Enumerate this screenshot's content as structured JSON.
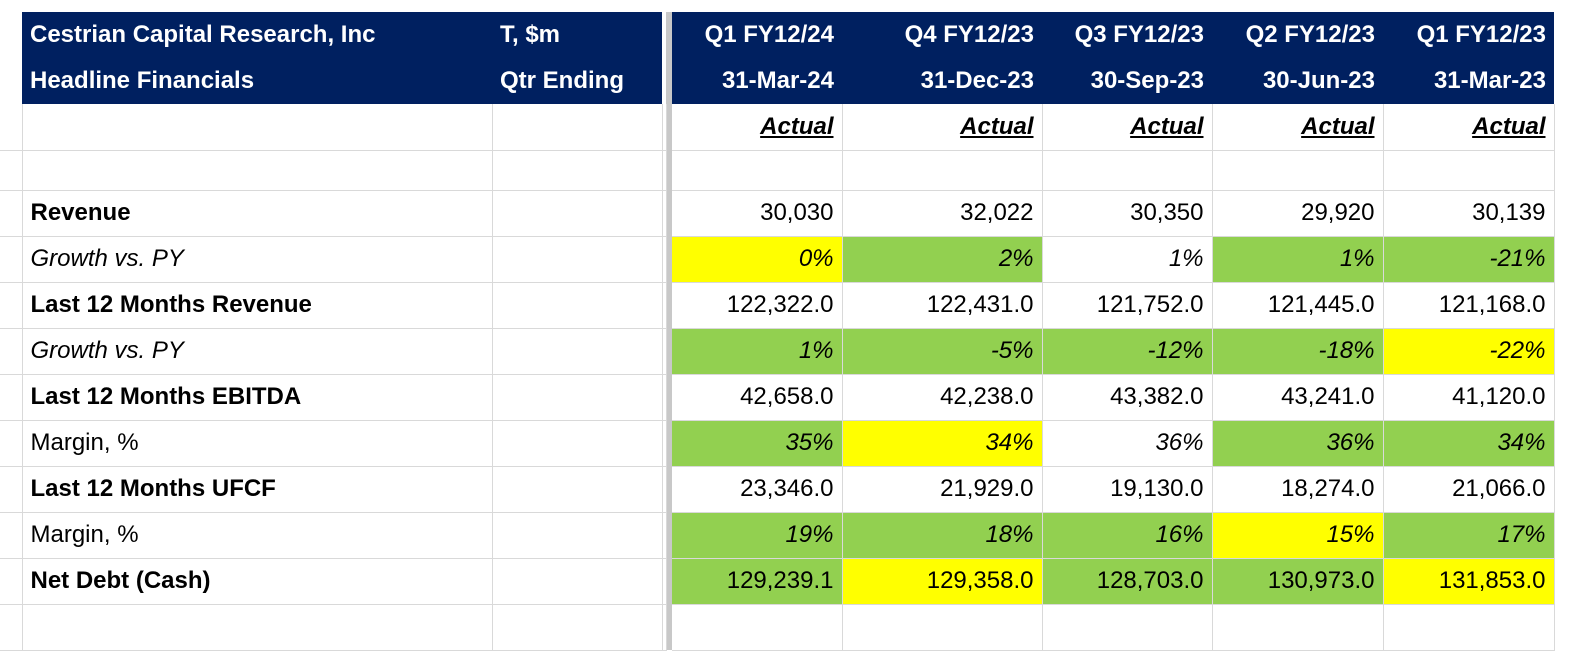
{
  "header": {
    "line1": [
      "Cestrian Capital Research, Inc",
      "T, $m",
      "Q1 FY12/24",
      "Q4 FY12/23",
      "Q3 FY12/23",
      "Q2 FY12/23",
      "Q1 FY12/23"
    ],
    "line2": [
      "Headline Financials",
      "Qtr Ending",
      "31-Mar-24",
      "31-Dec-23",
      "30-Sep-23",
      "30-Jun-23",
      "31-Mar-23"
    ]
  },
  "actual_label": "Actual",
  "rows": [
    {
      "label": "Revenue",
      "style": "bold",
      "values": [
        "30,030",
        "32,022",
        "30,350",
        "29,920",
        "30,139"
      ],
      "highlight": [
        "",
        "",
        "",
        "",
        ""
      ]
    },
    {
      "label": "Growth vs. PY",
      "style": "ital",
      "values": [
        "0%",
        "2%",
        "1%",
        "1%",
        "-21%"
      ],
      "highlight": [
        "yellow",
        "green",
        "",
        "green",
        "green"
      ]
    },
    {
      "label": "Last 12 Months Revenue",
      "style": "bold",
      "values": [
        "122,322.0",
        "122,431.0",
        "121,752.0",
        "121,445.0",
        "121,168.0"
      ],
      "highlight": [
        "",
        "",
        "",
        "",
        ""
      ]
    },
    {
      "label": "Growth vs. PY",
      "style": "ital",
      "values": [
        "1%",
        "-5%",
        "-12%",
        "-18%",
        "-22%"
      ],
      "highlight": [
        "green",
        "green",
        "green",
        "green",
        "yellow"
      ]
    },
    {
      "label": "Last 12 Months EBITDA",
      "style": "bold",
      "values": [
        "42,658.0",
        "42,238.0",
        "43,382.0",
        "43,241.0",
        "41,120.0"
      ],
      "highlight": [
        "",
        "",
        "",
        "",
        ""
      ]
    },
    {
      "label": "Margin, %",
      "style": "plain",
      "values": [
        "35%",
        "34%",
        "36%",
        "36%",
        "34%"
      ],
      "highlight": [
        "green",
        "yellow",
        "",
        "green",
        "green"
      ]
    },
    {
      "label": "Last 12 Months UFCF",
      "style": "bold",
      "values": [
        "23,346.0",
        "21,929.0",
        "19,130.0",
        "18,274.0",
        "21,066.0"
      ],
      "highlight": [
        "",
        "",
        "",
        "",
        ""
      ]
    },
    {
      "label": "Margin, %",
      "style": "plain",
      "values": [
        "19%",
        "18%",
        "16%",
        "15%",
        "17%"
      ],
      "highlight": [
        "green",
        "green",
        "green",
        "yellow",
        "green"
      ]
    },
    {
      "label": "Net Debt (Cash)",
      "style": "bold",
      "values": [
        "129,239.1",
        "129,358.0",
        "128,703.0",
        "130,973.0",
        "131,853.0"
      ],
      "highlight": [
        "green",
        "yellow",
        "green",
        "green",
        "yellow"
      ]
    }
  ],
  "colors": {
    "header_bg": "#002060",
    "green": "#92d050",
    "yellow": "#ffff00"
  }
}
